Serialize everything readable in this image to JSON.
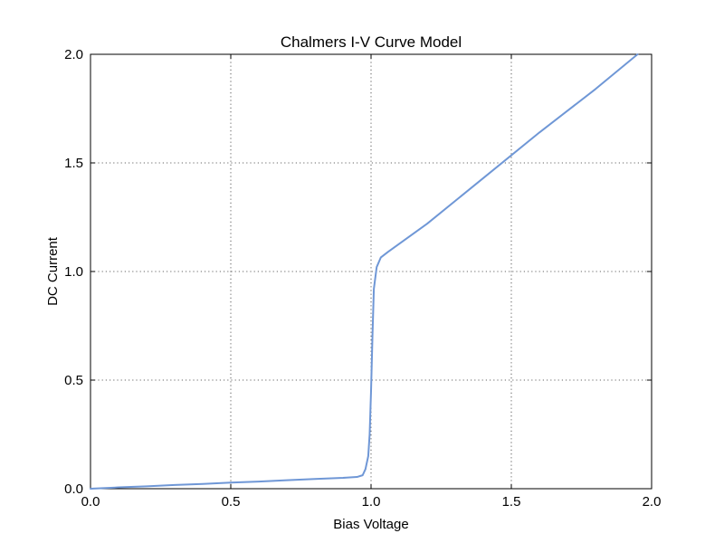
{
  "chart_data": {
    "type": "line",
    "title": "Chalmers I-V Curve Model",
    "xlabel": "Bias Voltage",
    "ylabel": "DC Current",
    "xlim": [
      0,
      2
    ],
    "ylim": [
      0,
      2
    ],
    "xticks": [
      "0.0",
      "0.5",
      "1.0",
      "1.5",
      "2.0"
    ],
    "yticks": [
      "0.0",
      "0.5",
      "1.0",
      "1.5",
      "2.0"
    ],
    "grid": true,
    "line_color": "#6f97d6",
    "series": [
      {
        "values": [
          [
            0.0,
            0.0
          ],
          [
            0.1,
            0.006
          ],
          [
            0.2,
            0.011
          ],
          [
            0.3,
            0.017
          ],
          [
            0.4,
            0.022
          ],
          [
            0.5,
            0.028
          ],
          [
            0.6,
            0.033
          ],
          [
            0.7,
            0.039
          ],
          [
            0.8,
            0.045
          ],
          [
            0.9,
            0.05
          ],
          [
            0.95,
            0.054
          ],
          [
            0.97,
            0.062
          ],
          [
            0.98,
            0.09
          ],
          [
            0.99,
            0.15
          ],
          [
            0.995,
            0.25
          ],
          [
            1.0,
            0.45
          ],
          [
            1.005,
            0.7
          ],
          [
            1.01,
            0.92
          ],
          [
            1.02,
            1.02
          ],
          [
            1.035,
            1.065
          ],
          [
            1.06,
            1.09
          ],
          [
            1.2,
            1.22
          ],
          [
            1.4,
            1.43
          ],
          [
            1.6,
            1.64
          ],
          [
            1.8,
            1.84
          ],
          [
            1.95,
            2.0
          ]
        ]
      }
    ]
  }
}
